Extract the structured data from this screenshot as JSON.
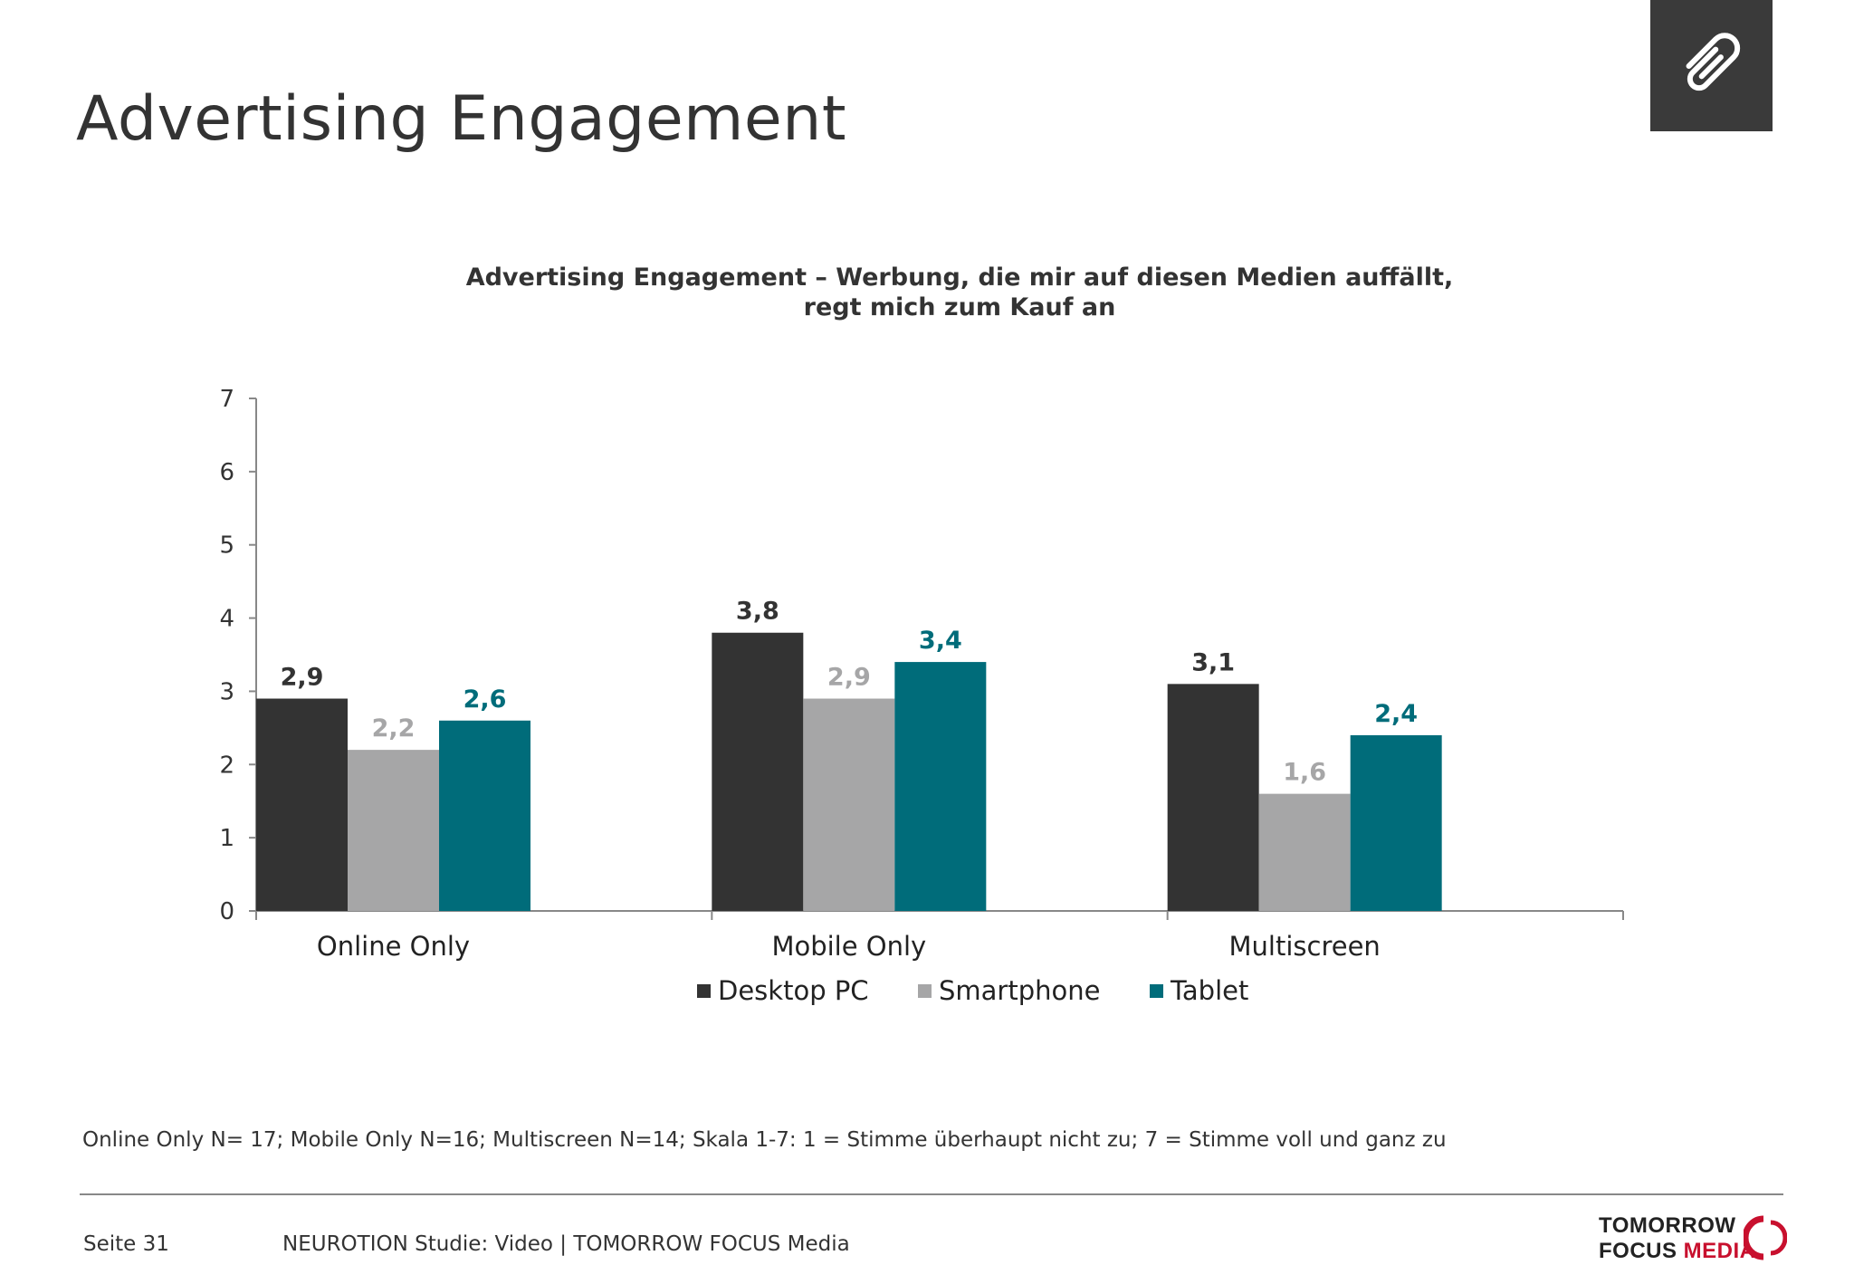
{
  "header": {
    "title": "Advertising Engagement"
  },
  "colors": {
    "desktop": "#333333",
    "smartphone": "#a6a6a7",
    "tablet": "#006c7a",
    "axis": "#888888"
  },
  "chart_data": {
    "type": "bar",
    "title": "Advertising Engagement – Werbung, die mir auf diesen Medien auffällt, regt mich zum Kauf an",
    "title_lines": [
      "Advertising Engagement – Werbung, die mir auf diesen Medien auffällt,",
      "regt mich zum Kauf an"
    ],
    "categories": [
      "Online Only",
      "Mobile Only",
      "Multiscreen"
    ],
    "series": [
      {
        "name": "Desktop PC",
        "values": [
          2.9,
          3.8,
          3.1
        ],
        "labels": [
          "2,9",
          "3,8",
          "3,1"
        ],
        "color": "#333333"
      },
      {
        "name": "Smartphone",
        "values": [
          2.2,
          2.9,
          1.6
        ],
        "labels": [
          "2,2",
          "2,9",
          "1,6"
        ],
        "color": "#a6a6a7"
      },
      {
        "name": "Tablet",
        "values": [
          2.6,
          3.4,
          2.4
        ],
        "labels": [
          "2,6",
          "3,4",
          "2,4"
        ],
        "color": "#006c7a"
      }
    ],
    "ylim": [
      0,
      7
    ],
    "yticks": [
      "0",
      "1",
      "2",
      "3",
      "4",
      "5",
      "6",
      "7"
    ],
    "xlabel": "",
    "ylabel": "",
    "grid": false,
    "legend_position": "bottom"
  },
  "footnote": "Online Only N= 17; Mobile Only N=16; Multiscreen N=14; Skala 1-7: 1 = Stimme überhaupt nicht zu; 7 = Stimme voll und ganz zu",
  "footer": {
    "page": "Seite 31",
    "study": "NEUROTION Studie: Video | TOMORROW FOCUS Media",
    "logo_line1": "TOMORROW",
    "logo_line2a": "FOCUS",
    "logo_line2b": "MEDIA"
  },
  "icons": {
    "corner": "paperclip-icon"
  }
}
